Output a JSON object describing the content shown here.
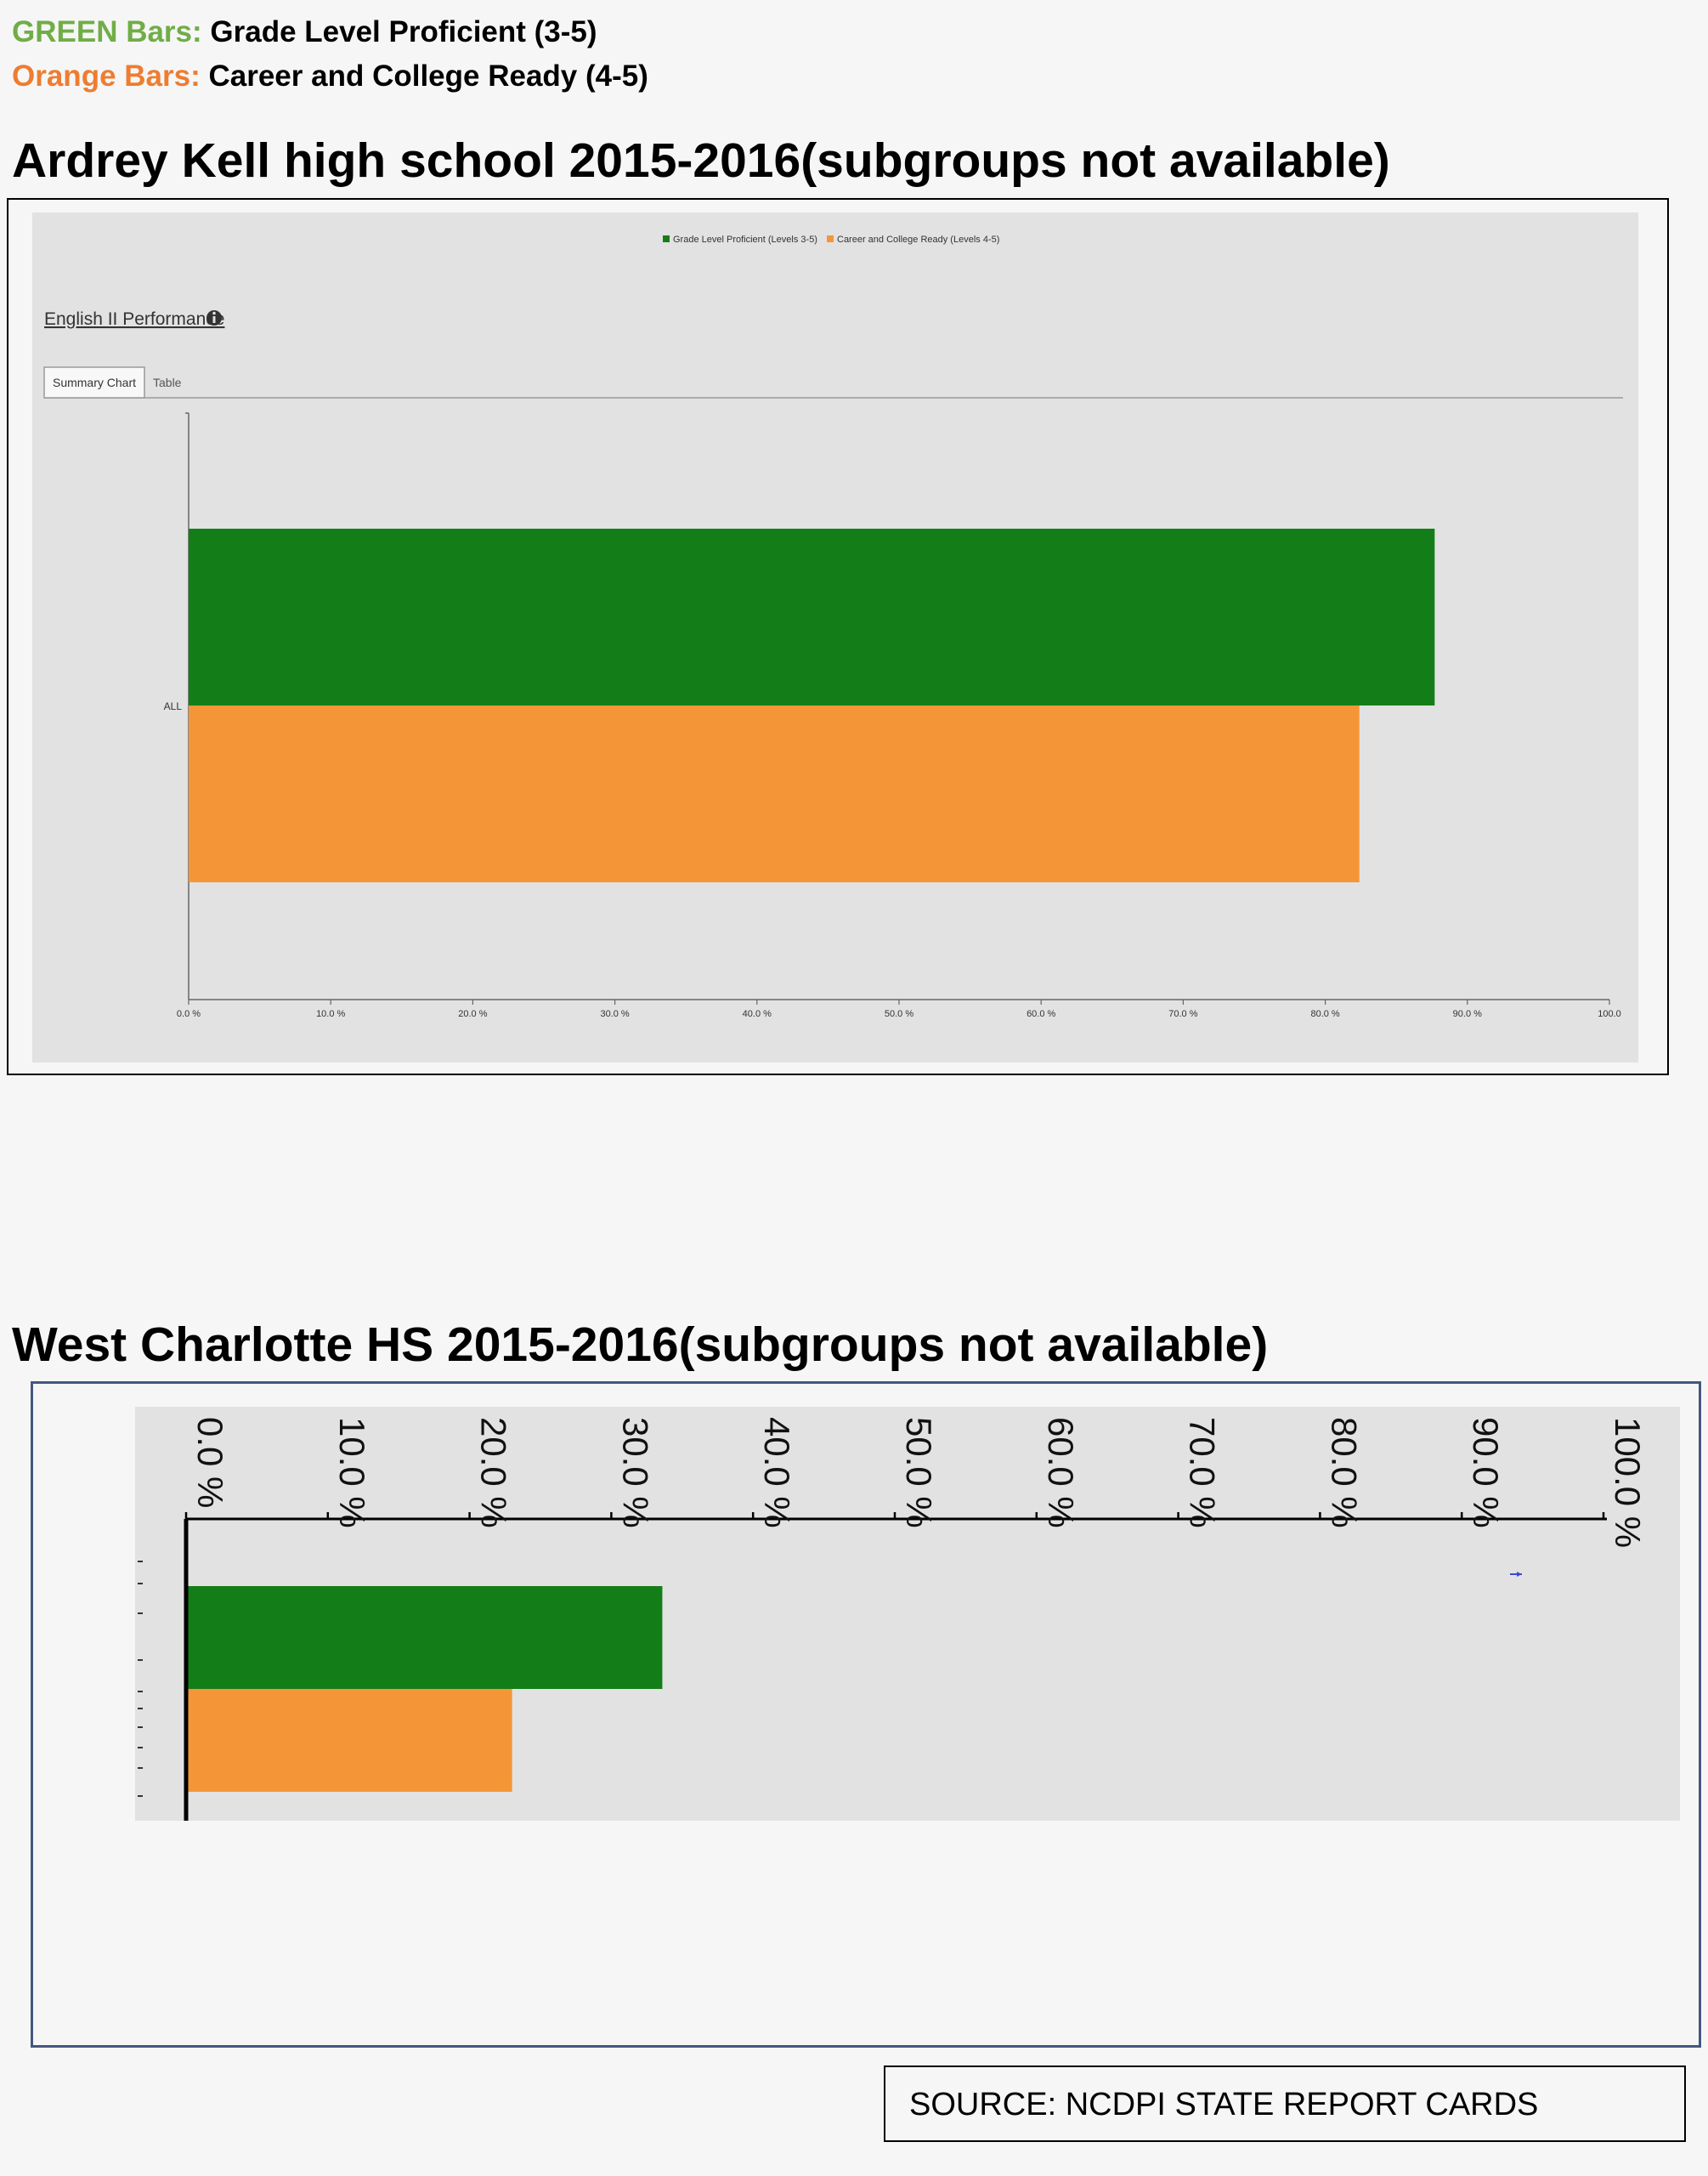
{
  "key": {
    "green_label": "GREEN Bars:",
    "green_text": "Grade Level Proficient (3-5)",
    "orange_label": "Orange Bars:",
    "orange_text": "Career and College Ready (4-5)"
  },
  "colors": {
    "green_key": "#70ad47",
    "orange_key": "#ed7d31",
    "bar_green": "#137e18",
    "bar_orange": "#f49637",
    "panel_bg": "#e2e2e2"
  },
  "school1": {
    "title": "Ardrey Kell high school 2015-2016(subgroups not available)",
    "legend": [
      "Grade Level Proficient (Levels 3-5)",
      "Career and College Ready (Levels 4-5)"
    ],
    "section_title": "English II Performance",
    "tabs": [
      {
        "label": "Summary Chart",
        "active": true
      },
      {
        "label": "Table",
        "active": false
      }
    ]
  },
  "school2": {
    "title": "West Charlotte HS  2015-2016(subgroups not available)"
  },
  "source": "SOURCE:  NCDPI STATE REPORT CARDS",
  "chart_data": [
    {
      "type": "bar",
      "orientation": "horizontal",
      "categories": [
        "ALL"
      ],
      "series": [
        {
          "name": "Grade Level Proficient (Levels 3-5)",
          "values": [
            87.7
          ]
        },
        {
          "name": "Career and College Ready (Levels 4-5)",
          "values": [
            82.4
          ]
        }
      ],
      "xlim": [
        0,
        100
      ],
      "tick_labels": [
        "0.0 %",
        "10.0 %",
        "20.0 %",
        "30.0 %",
        "40.0 %",
        "50.0 %",
        "60.0 %",
        "70.0 %",
        "80.0 %",
        "90.0 %",
        "100.0"
      ],
      "legend_position": "top"
    },
    {
      "type": "bar",
      "orientation": "horizontal",
      "series": [
        {
          "values": [
            33.6
          ]
        },
        {
          "values": [
            23.0
          ]
        }
      ],
      "xlim": [
        0,
        100
      ],
      "tick_labels": [
        "0.0 %",
        "10.0 %",
        "20.0 %",
        "30.0 %",
        "40.0 %",
        "50.0 %",
        "60.0 %",
        "70.0 %",
        "80.0 %",
        "90.0 %",
        "100.0 %"
      ],
      "axis_position": "top"
    }
  ]
}
